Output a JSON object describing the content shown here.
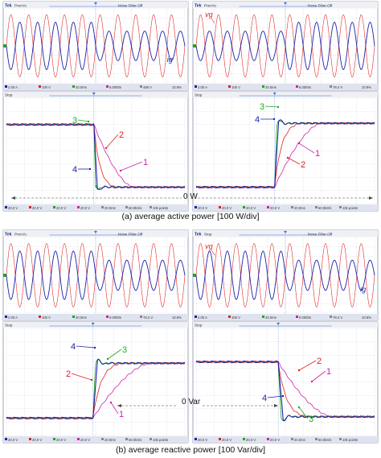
{
  "captions": {
    "a": "(a) average active power [100 W/div]",
    "b": "(b) average reactive power [100 Var/div]"
  },
  "colors": {
    "scope_blue": "#1c22a8",
    "scope_red": "#e02020",
    "trace_green": "#1aaa1a",
    "trace_magenta": "#cc22aa",
    "grid": "#9aa0b8",
    "frame": "#8a90a8",
    "status_bar": "#dfe3ef",
    "cursor_blue": "#4a6fd0"
  },
  "scopes": {
    "top_left": {
      "header_brand": "Tek",
      "header_mode": "PrevVu",
      "header_right": "Noise Filter Off",
      "footer": [
        "2.00 A",
        "100 V",
        "20.0ms",
        "6.0000s",
        "488 V"
      ],
      "footer_time": "10.9%"
    },
    "top_right": {
      "header_brand": "Tek",
      "header_mode": "PrevVu",
      "header_right": "Noise Filter Off",
      "footer": [
        "2.00 A",
        "100 V",
        "20.0ms",
        "6.0000s",
        "78.4 V"
      ],
      "footer_time": "10.9%"
    },
    "mid_left": {
      "header_brand": "Tek",
      "header_mode": "PrevVu",
      "header_right": "Noise Filter Off",
      "footer": [
        "2.00 A",
        "100 V",
        "20.0ms",
        "0.0000s",
        "78.2 V"
      ],
      "footer_time": "10.9%"
    },
    "mid_right": {
      "header_brand": "Tek",
      "header_mode": "Stop",
      "header_right": "Noise Filter Off",
      "footer": [
        "2.00 A",
        "100 V",
        "20.0ms",
        "0.0000s",
        "78.4 V"
      ],
      "footer_time": "10.9%"
    },
    "pow_a_left": {
      "header_mode": "Stop",
      "footer": [
        "20.0 V",
        "20.0 V",
        "20.0 V",
        "20.0 V",
        "20.0ms",
        "50.0kS/s",
        "10k points"
      ]
    },
    "pow_a_right": {
      "header_mode": "Stop",
      "footer": [
        "20.0 V",
        "20.0 V",
        "20.0 V",
        "20.0 V",
        "20.0ms",
        "50.0kS/s",
        "10k points"
      ]
    },
    "pow_b_left": {
      "header_mode": "Stop",
      "footer": [
        "20.0 V",
        "20.0 V",
        "20.0 V",
        "20.0 V",
        "20.0ms",
        "50.0kS/s",
        "10k points"
      ]
    },
    "pow_b_right": {
      "header_mode": "Stop",
      "footer": [
        "20.0 V",
        "20.0 V",
        "20.0 V",
        "20.0 V",
        "20.0ms",
        "50.0kS/s",
        "10k points"
      ]
    }
  },
  "labels": {
    "vg": "vg",
    "ig": "ig",
    "zero_w": "0 W",
    "zero_var": "0 Var",
    "n1": "1",
    "n2": "2",
    "n3": "3",
    "n4": "4"
  },
  "chart_data": [
    {
      "type": "line",
      "id": "a_left",
      "title": "average active power, step down",
      "x_divisions": 10,
      "y_divisions": 8,
      "time_per_div": "20.0ms",
      "series": [
        {
          "name": "1",
          "values_div": {
            "before": 6.0,
            "after": 1.25
          },
          "step_at_div": 4.9,
          "settle_div": 2.2
        },
        {
          "name": "2",
          "values_div": {
            "before": 6.0,
            "after": 1.25
          },
          "step_at_div": 4.9,
          "settle_div": 1.2
        },
        {
          "name": "3",
          "values_div": {
            "before": 6.0,
            "after": 1.25
          },
          "step_at_div": 4.9,
          "settle_div": 0.25
        },
        {
          "name": "4",
          "values_div": {
            "before": 6.0,
            "after": 1.25
          },
          "step_at_div": 4.9,
          "settle_div": 0.4
        }
      ],
      "zero_level_div": 0.35
    },
    {
      "type": "line",
      "id": "a_right",
      "title": "average active power, step up",
      "x_divisions": 10,
      "y_divisions": 8,
      "time_per_div": "20.0ms",
      "series": [
        {
          "name": "1",
          "values_div": {
            "before": 1.25,
            "after": 6.1
          },
          "step_at_div": 4.4,
          "settle_div": 2.6
        },
        {
          "name": "2",
          "values_div": {
            "before": 1.25,
            "after": 6.1
          },
          "step_at_div": 4.4,
          "settle_div": 1.4
        },
        {
          "name": "3",
          "values_div": {
            "before": 1.25,
            "after": 6.1
          },
          "step_at_div": 4.4,
          "settle_div": 0.3
        },
        {
          "name": "4",
          "values_div": {
            "before": 1.25,
            "after": 6.1
          },
          "step_at_div": 4.4,
          "settle_div": 0.45
        }
      ]
    },
    {
      "type": "line",
      "id": "b_left",
      "title": "average reactive power, step up",
      "x_divisions": 10,
      "y_divisions": 8,
      "time_per_div": "20.0ms",
      "series": [
        {
          "name": "1",
          "values_div": {
            "before": 1.3,
            "after": 5.4
          },
          "step_at_div": 4.85,
          "settle_div": 3.2
        },
        {
          "name": "2",
          "values_div": {
            "before": 1.3,
            "after": 5.4
          },
          "step_at_div": 4.85,
          "settle_div": 1.6
        },
        {
          "name": "3",
          "values_div": {
            "before": 1.3,
            "after": 5.4
          },
          "step_at_div": 4.85,
          "settle_div": 0.35
        },
        {
          "name": "4",
          "values_div": {
            "before": 1.3,
            "after": 5.4
          },
          "step_at_div": 4.85,
          "settle_div": 0.5
        }
      ],
      "zero_level_div": 1.7
    },
    {
      "type": "line",
      "id": "b_right",
      "title": "average reactive power, step down",
      "x_divisions": 10,
      "y_divisions": 8,
      "time_per_div": "20.0ms",
      "series": [
        {
          "name": "1",
          "values_div": {
            "before": 5.5,
            "after": 1.4
          },
          "step_at_div": 4.6,
          "settle_div": 3.0
        },
        {
          "name": "2",
          "values_div": {
            "before": 5.5,
            "after": 1.4
          },
          "step_at_div": 4.6,
          "settle_div": 1.6
        },
        {
          "name": "3",
          "values_div": {
            "before": 5.5,
            "after": 1.4
          },
          "step_at_div": 4.6,
          "settle_div": 0.4
        },
        {
          "name": "4",
          "values_div": {
            "before": 5.5,
            "after": 1.4
          },
          "step_at_div": 4.6,
          "settle_div": 0.55
        }
      ]
    }
  ]
}
